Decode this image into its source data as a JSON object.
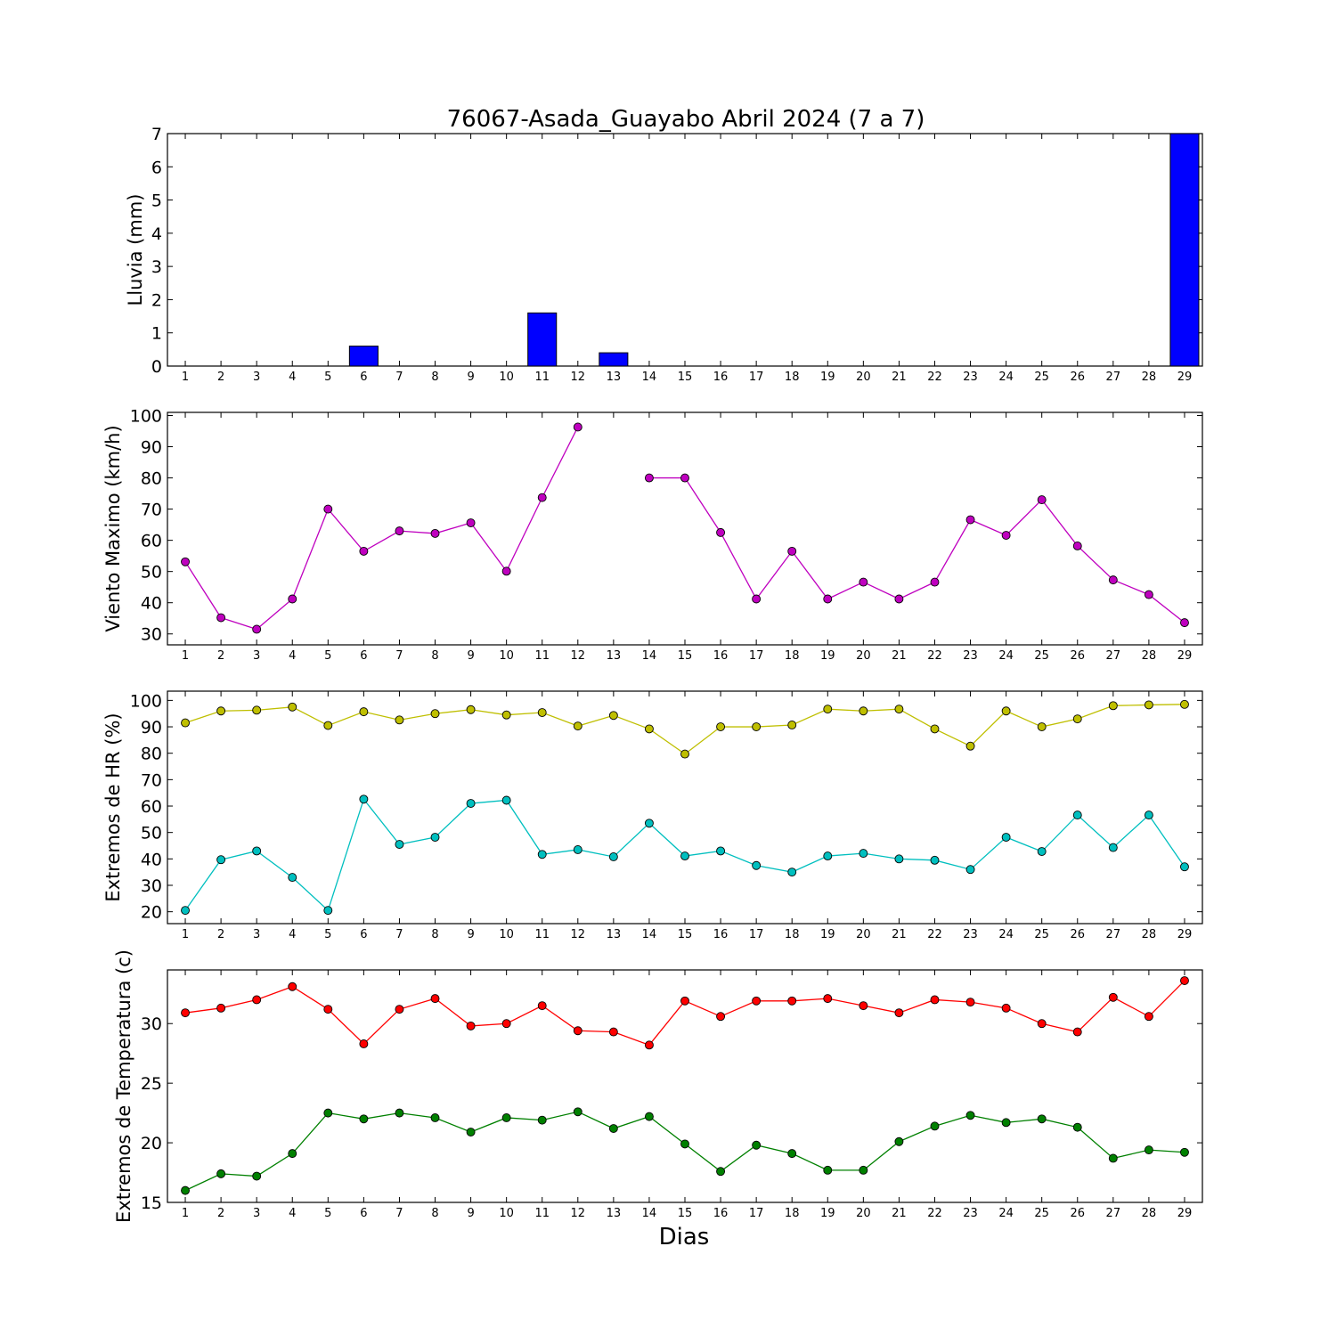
{
  "title": "76067-Asada_Guayabo Abril 2024  (7 a 7)",
  "xlabel": "Dias",
  "colors": {
    "lluvia": "#0000ff",
    "viento": "#bf00bf",
    "hr_max": "#bfbf00",
    "hr_min": "#00bfbf",
    "temp_max": "#ff0000",
    "temp_min": "#008000"
  },
  "chart_data": [
    {
      "type": "bar",
      "ylabel": "Lluvia (mm)",
      "ylim": [
        0,
        7
      ],
      "yticks": [
        0,
        1,
        2,
        3,
        4,
        5,
        6,
        7
      ],
      "x": [
        1,
        2,
        3,
        4,
        5,
        6,
        7,
        8,
        9,
        10,
        11,
        12,
        13,
        14,
        15,
        16,
        17,
        18,
        19,
        20,
        21,
        22,
        23,
        24,
        25,
        26,
        27,
        28,
        29
      ],
      "values": [
        0,
        0,
        0,
        0,
        0,
        0.6,
        0,
        0,
        0,
        0,
        1.6,
        0,
        0.4,
        0,
        0,
        0,
        0,
        0,
        0,
        0,
        0,
        0,
        0,
        0,
        0,
        0,
        0,
        0,
        7.0
      ],
      "color_key": "lluvia"
    },
    {
      "type": "line",
      "ylabel": "Viento Maximo (km/h)",
      "ylim": [
        26.5,
        101
      ],
      "yticks": [
        30,
        40,
        50,
        60,
        70,
        80,
        90,
        100
      ],
      "x": [
        1,
        2,
        3,
        4,
        5,
        6,
        7,
        8,
        9,
        10,
        11,
        12,
        13,
        14,
        15,
        16,
        17,
        18,
        19,
        20,
        21,
        22,
        23,
        24,
        25,
        26,
        27,
        28,
        29
      ],
      "series": [
        {
          "color_key": "viento",
          "values": [
            53.1,
            35.2,
            31.5,
            41.2,
            70.0,
            56.5,
            63.0,
            62.2,
            65.6,
            50.1,
            73.7,
            96.3,
            null,
            80.0,
            80.0,
            62.5,
            41.2,
            56.5,
            41.2,
            46.6,
            41.2,
            46.6,
            66.6,
            61.6,
            73.0,
            58.2,
            47.3,
            42.6,
            33.6
          ]
        }
      ]
    },
    {
      "type": "line",
      "ylabel": "Extremos de HR (%)",
      "ylim": [
        15.5,
        103.5
      ],
      "yticks": [
        20,
        30,
        40,
        50,
        60,
        70,
        80,
        90,
        100
      ],
      "x": [
        1,
        2,
        3,
        4,
        5,
        6,
        7,
        8,
        9,
        10,
        11,
        12,
        13,
        14,
        15,
        16,
        17,
        18,
        19,
        20,
        21,
        22,
        23,
        24,
        25,
        26,
        27,
        28,
        29
      ],
      "series": [
        {
          "color_key": "hr_max",
          "values": [
            91.5,
            96.0,
            96.3,
            97.5,
            90.5,
            95.7,
            92.6,
            95.0,
            96.5,
            94.5,
            95.4,
            90.3,
            94.3,
            89.2,
            79.7,
            90.0,
            90.0,
            90.7,
            96.7,
            96.0,
            96.7,
            89.2,
            82.7,
            96.0,
            90.0,
            93.0,
            98.0,
            98.3,
            98.5
          ]
        },
        {
          "color_key": "hr_min",
          "values": [
            20.5,
            39.7,
            43.0,
            33.0,
            20.5,
            62.6,
            45.5,
            48.2,
            61.0,
            62.2,
            41.7,
            43.5,
            40.8,
            53.5,
            41.1,
            43.0,
            37.5,
            35.0,
            41.1,
            42.1,
            40.0,
            39.5,
            36.0,
            48.2,
            42.8,
            56.6,
            44.3,
            56.6,
            37.0
          ]
        }
      ]
    },
    {
      "type": "line",
      "ylabel": "Extremos de Temperatura (c)",
      "ylim": [
        15,
        34.5
      ],
      "yticks": [
        15,
        20,
        25,
        30
      ],
      "x": [
        1,
        2,
        3,
        4,
        5,
        6,
        7,
        8,
        9,
        10,
        11,
        12,
        13,
        14,
        15,
        16,
        17,
        18,
        19,
        20,
        21,
        22,
        23,
        24,
        25,
        26,
        27,
        28,
        29
      ],
      "series": [
        {
          "color_key": "temp_max",
          "values": [
            30.9,
            31.3,
            32.0,
            33.1,
            31.2,
            28.3,
            31.2,
            32.1,
            29.8,
            30.0,
            31.5,
            29.4,
            29.3,
            28.2,
            31.9,
            30.6,
            31.9,
            31.9,
            32.1,
            31.5,
            30.9,
            32.0,
            31.8,
            31.3,
            30.0,
            29.3,
            32.2,
            30.6,
            33.6
          ]
        },
        {
          "color_key": "temp_min",
          "values": [
            16.0,
            17.4,
            17.2,
            19.1,
            22.5,
            22.0,
            22.5,
            22.1,
            20.9,
            22.1,
            21.9,
            22.6,
            21.2,
            22.2,
            19.9,
            17.6,
            19.8,
            19.1,
            17.7,
            17.7,
            20.1,
            21.4,
            22.3,
            21.7,
            22.0,
            21.3,
            18.7,
            19.4,
            19.2
          ]
        }
      ]
    }
  ]
}
